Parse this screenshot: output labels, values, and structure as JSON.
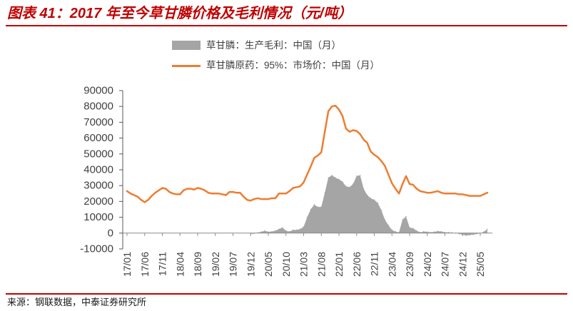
{
  "theme": {
    "accent": "#c00000"
  },
  "source": "来源：钢联数据，中泰证券研究所",
  "chart_data": {
    "type": "line",
    "title": "图表 41：2017 年至今草甘膦价格及毛利情况（元/吨）",
    "legend": "top",
    "grid": false,
    "ylim": [
      -10000,
      90000
    ],
    "y_ticks": [
      -10000,
      0,
      10000,
      20000,
      30000,
      40000,
      50000,
      60000,
      70000,
      80000,
      90000
    ],
    "x": [
      "17/01",
      "17/02",
      "17/03",
      "17/04",
      "17/05",
      "17/06",
      "17/07",
      "17/08",
      "17/09",
      "17/10",
      "17/11",
      "17/12",
      "18/01",
      "18/02",
      "18/03",
      "18/04",
      "18/05",
      "18/06",
      "18/07",
      "18/08",
      "18/09",
      "18/10",
      "18/11",
      "18/12",
      "19/01",
      "19/02",
      "19/03",
      "19/04",
      "19/05",
      "19/06",
      "19/07",
      "19/08",
      "19/09",
      "19/10",
      "19/11",
      "19/12",
      "20/01",
      "20/02",
      "20/03",
      "20/04",
      "20/05",
      "20/06",
      "20/07",
      "20/08",
      "20/09",
      "20/10",
      "20/11",
      "20/12",
      "21/01",
      "21/02",
      "21/03",
      "21/04",
      "21/05",
      "21/06",
      "21/07",
      "21/08",
      "21/09",
      "21/10",
      "21/11",
      "21/12",
      "22/01",
      "22/02",
      "22/03",
      "22/04",
      "22/05",
      "22/06",
      "22/07",
      "22/08",
      "22/09",
      "22/10",
      "22/11",
      "22/12",
      "23/01",
      "23/02",
      "23/03",
      "23/04",
      "23/05",
      "23/06",
      "23/07",
      "23/08",
      "23/09",
      "23/10",
      "23/11",
      "23/12",
      "24/01",
      "24/02",
      "24/03",
      "24/04",
      "24/05",
      "24/06",
      "24/07",
      "24/08",
      "24/09",
      "24/10",
      "24/11",
      "24/12",
      "25/01",
      "25/02",
      "25/03",
      "25/04",
      "25/05",
      "25/06",
      "25/07"
    ],
    "series": [
      {
        "name": "草甘膦：生产毛利：中国（月）",
        "type": "area",
        "color": "#a5a5a5",
        "values": [
          null,
          null,
          null,
          null,
          null,
          null,
          null,
          null,
          null,
          null,
          null,
          null,
          null,
          null,
          null,
          null,
          null,
          null,
          null,
          null,
          null,
          null,
          null,
          null,
          null,
          null,
          null,
          null,
          null,
          null,
          null,
          null,
          null,
          null,
          null,
          -500,
          -300,
          300,
          800,
          1500,
          800,
          1000,
          1500,
          2500,
          3500,
          1500,
          1000,
          2000,
          2000,
          2500,
          4000,
          10000,
          15000,
          18000,
          16500,
          16500,
          25500,
          35000,
          36500,
          35000,
          34000,
          32500,
          29500,
          29000,
          31000,
          36000,
          36500,
          28000,
          24000,
          22000,
          21000,
          19000,
          14500,
          8500,
          5000,
          2000,
          1000,
          500,
          8500,
          10500,
          3500,
          3000,
          1500,
          500,
          1000,
          800,
          500,
          800,
          1200,
          1000,
          500,
          500,
          300,
          0,
          -500,
          -1000,
          -1500,
          -1200,
          -1000,
          -500,
          -200,
          800,
          2500
        ]
      },
      {
        "name": "草甘膦原药：95%：市场价：中国（月）",
        "type": "line",
        "color": "#ed7d31",
        "values": [
          26500,
          25000,
          24000,
          23000,
          21000,
          19500,
          21000,
          23500,
          25500,
          27000,
          28500,
          28000,
          26000,
          25000,
          24500,
          24500,
          27000,
          28000,
          28000,
          27500,
          28500,
          28000,
          27000,
          25500,
          25000,
          25000,
          25000,
          24500,
          24000,
          26000,
          26000,
          25500,
          25500,
          23000,
          21000,
          20500,
          21500,
          22000,
          21500,
          21500,
          21500,
          22000,
          22000,
          25000,
          25000,
          25000,
          26500,
          28500,
          29000,
          29500,
          32000,
          37000,
          42000,
          47500,
          49000,
          51000,
          64000,
          77000,
          80000,
          80500,
          78000,
          74000,
          66000,
          64000,
          65000,
          64500,
          62500,
          59000,
          57000,
          51500,
          49500,
          48000,
          45500,
          42500,
          37000,
          31500,
          28000,
          25000,
          31000,
          36000,
          31000,
          30500,
          28000,
          26500,
          26000,
          25500,
          25500,
          26000,
          26500,
          25500,
          25000,
          25000,
          25000,
          25000,
          24500,
          24500,
          24000,
          23500,
          23500,
          23500,
          23500,
          24500,
          25500
        ]
      }
    ]
  }
}
